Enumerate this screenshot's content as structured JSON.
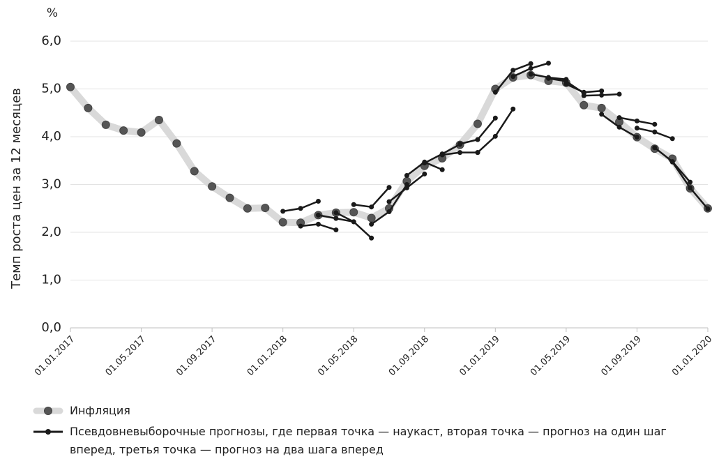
{
  "chart_data": {
    "type": "line",
    "unit": "%",
    "y_label": "Темп роста цен за 12 месяцев",
    "ylim": [
      0,
      6
    ],
    "yticks": [
      {
        "value": 0,
        "label": "0,0"
      },
      {
        "value": 1,
        "label": "1,0"
      },
      {
        "value": 2,
        "label": "2,0"
      },
      {
        "value": 3,
        "label": "3,0"
      },
      {
        "value": 4,
        "label": "4,0"
      },
      {
        "value": 5,
        "label": "5,0"
      },
      {
        "value": 6,
        "label": "6,0"
      }
    ],
    "xlim": [
      "2017-01-01",
      "2020-01-01"
    ],
    "xticks": [
      {
        "value": "2017-01-01",
        "label": "01.01.2017"
      },
      {
        "value": "2017-05-01",
        "label": "01.05.2017"
      },
      {
        "value": "2017-09-01",
        "label": "01.09.2017"
      },
      {
        "value": "2018-01-01",
        "label": "01.01.2018"
      },
      {
        "value": "2018-05-01",
        "label": "01.05.2018"
      },
      {
        "value": "2018-09-01",
        "label": "01.09.2018"
      },
      {
        "value": "2019-01-01",
        "label": "01.01.2019"
      },
      {
        "value": "2019-05-01",
        "label": "01.05.2019"
      },
      {
        "value": "2019-09-01",
        "label": "01.09.2019"
      },
      {
        "value": "2020-01-01",
        "label": "01.01.2020"
      }
    ],
    "grid": true,
    "series": [
      {
        "name": "Инфляция",
        "color": "#d9d9d9",
        "marker_color": "#555555",
        "x": [
          "2017-01-01",
          "2017-02-01",
          "2017-03-01",
          "2017-04-01",
          "2017-05-01",
          "2017-06-01",
          "2017-07-01",
          "2017-08-01",
          "2017-09-01",
          "2017-10-01",
          "2017-11-01",
          "2017-12-01",
          "2018-01-01",
          "2018-02-01",
          "2018-03-01",
          "2018-04-01",
          "2018-05-01",
          "2018-06-01",
          "2018-07-01",
          "2018-08-01",
          "2018-09-01",
          "2018-10-01",
          "2018-11-01",
          "2018-12-01",
          "2019-01-01",
          "2019-02-01",
          "2019-03-01",
          "2019-04-01",
          "2019-05-01",
          "2019-06-01",
          "2019-07-01",
          "2019-08-01",
          "2019-09-01",
          "2019-10-01",
          "2019-11-01",
          "2019-12-01",
          "2020-01-01"
        ],
        "values": [
          5.04,
          4.6,
          4.25,
          4.13,
          4.09,
          4.35,
          3.86,
          3.28,
          2.96,
          2.72,
          2.5,
          2.51,
          2.21,
          2.2,
          2.36,
          2.41,
          2.42,
          2.3,
          2.5,
          3.07,
          3.39,
          3.55,
          3.83,
          4.27,
          5.0,
          5.24,
          5.29,
          5.17,
          5.13,
          4.66,
          4.6,
          4.31,
          3.99,
          3.75,
          3.54,
          2.92,
          2.5
        ]
      },
      {
        "name": "Псевдовневыборочные прогнозы, где первая точка — наукаст, вторая точка — прогноз на один шаг вперед, третья точка — прогноз на два шага вперед",
        "color": "#1a1a1a",
        "segments": [
          {
            "x": [
              "2018-01-01",
              "2018-02-01",
              "2018-03-01"
            ],
            "values": [
              2.44,
              2.5,
              2.65
            ]
          },
          {
            "x": [
              "2018-02-01",
              "2018-03-01",
              "2018-04-01"
            ],
            "values": [
              2.13,
              2.17,
              2.05
            ]
          },
          {
            "x": [
              "2018-03-01",
              "2018-04-01",
              "2018-05-01"
            ],
            "values": [
              2.36,
              2.29,
              2.22
            ]
          },
          {
            "x": [
              "2018-04-01",
              "2018-05-01",
              "2018-06-01"
            ],
            "values": [
              2.41,
              2.22,
              1.88
            ]
          },
          {
            "x": [
              "2018-05-01",
              "2018-06-01",
              "2018-07-01"
            ],
            "values": [
              2.58,
              2.53,
              2.94
            ]
          },
          {
            "x": [
              "2018-06-01",
              "2018-07-01",
              "2018-08-01"
            ],
            "values": [
              2.17,
              2.43,
              3.0
            ]
          },
          {
            "x": [
              "2018-07-01",
              "2018-08-01",
              "2018-09-01"
            ],
            "values": [
              2.64,
              2.93,
              3.22
            ]
          },
          {
            "x": [
              "2018-08-01",
              "2018-09-01",
              "2018-10-01"
            ],
            "values": [
              3.19,
              3.47,
              3.31
            ]
          },
          {
            "x": [
              "2018-09-01",
              "2018-10-01",
              "2018-11-01"
            ],
            "values": [
              3.45,
              3.64,
              3.84
            ]
          },
          {
            "x": [
              "2018-10-01",
              "2018-11-01",
              "2018-12-01"
            ],
            "values": [
              3.62,
              3.67,
              3.67
            ]
          },
          {
            "x": [
              "2018-11-01",
              "2018-12-01",
              "2019-01-01"
            ],
            "values": [
              3.85,
              3.94,
              4.39
            ]
          },
          {
            "x": [
              "2018-12-01",
              "2019-01-01",
              "2019-02-01"
            ],
            "values": [
              3.67,
              4.01,
              4.58
            ]
          },
          {
            "x": [
              "2019-01-01",
              "2019-02-01",
              "2019-03-01"
            ],
            "values": [
              4.93,
              5.39,
              5.53
            ]
          },
          {
            "x": [
              "2019-02-01",
              "2019-03-01",
              "2019-04-01"
            ],
            "values": [
              5.26,
              5.43,
              5.54
            ]
          },
          {
            "x": [
              "2019-03-01",
              "2019-04-01",
              "2019-05-01"
            ],
            "values": [
              5.31,
              5.24,
              5.2
            ]
          },
          {
            "x": [
              "2019-04-01",
              "2019-05-01",
              "2019-06-01"
            ],
            "values": [
              5.22,
              5.16,
              4.91
            ]
          },
          {
            "x": [
              "2019-05-01",
              "2019-06-01",
              "2019-07-01"
            ],
            "values": [
              5.1,
              4.93,
              4.96
            ]
          },
          {
            "x": [
              "2019-06-01",
              "2019-07-01",
              "2019-08-01"
            ],
            "values": [
              4.86,
              4.87,
              4.89
            ]
          },
          {
            "x": [
              "2019-07-01",
              "2019-08-01",
              "2019-09-01"
            ],
            "values": [
              4.47,
              4.2,
              3.99
            ]
          },
          {
            "x": [
              "2019-08-01",
              "2019-09-01",
              "2019-10-01"
            ],
            "values": [
              4.4,
              4.33,
              4.26
            ]
          },
          {
            "x": [
              "2019-09-01",
              "2019-10-01",
              "2019-11-01"
            ],
            "values": [
              4.18,
              4.1,
              3.96
            ]
          },
          {
            "x": [
              "2019-10-01",
              "2019-11-01",
              "2019-12-01"
            ],
            "values": [
              3.77,
              3.48,
              3.05
            ]
          },
          {
            "x": [
              "2019-11-01",
              "2019-12-01",
              "2020-01-01"
            ],
            "values": [
              3.47,
              2.93,
              2.49
            ]
          }
        ]
      }
    ]
  }
}
